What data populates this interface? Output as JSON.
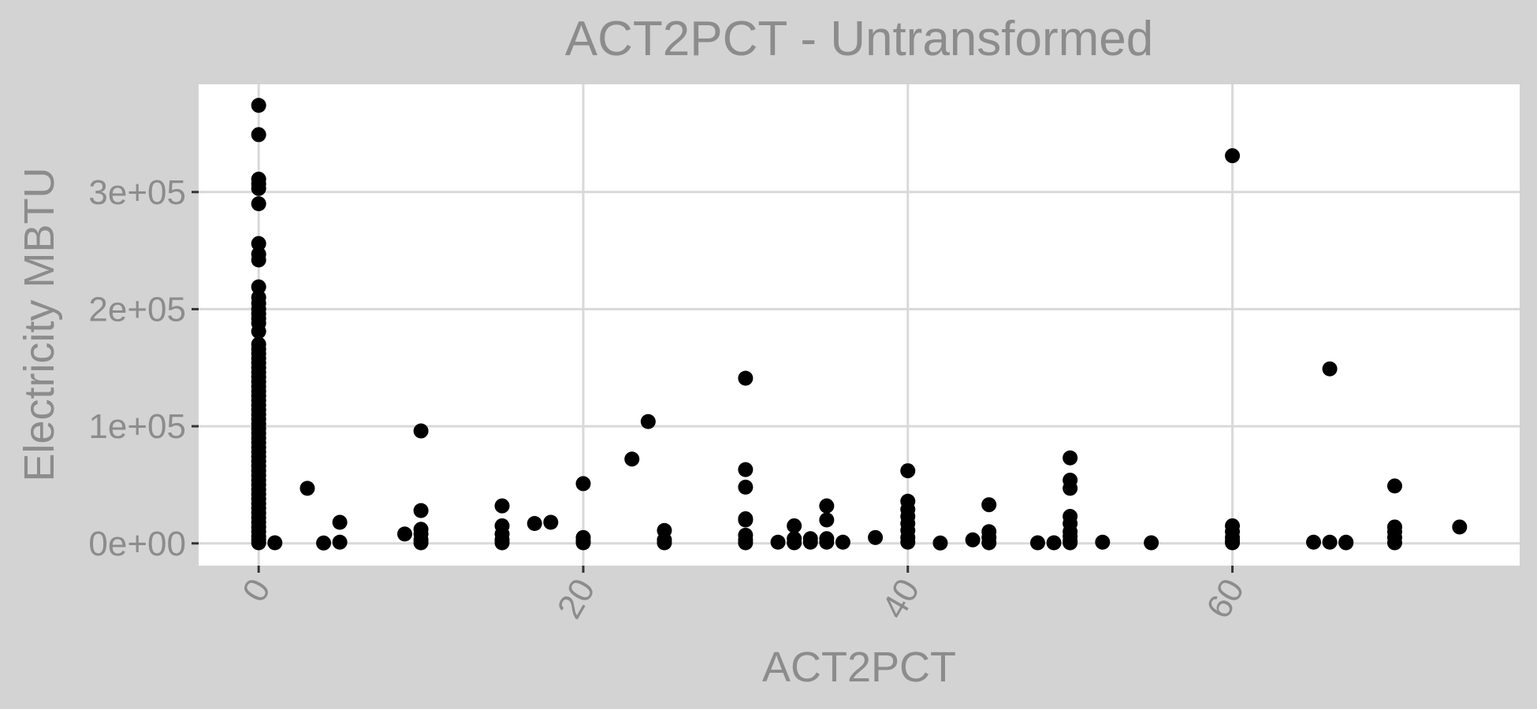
{
  "chart_data": {
    "type": "scatter",
    "title": "ACT2PCT - Untransformed",
    "xlabel": "ACT2PCT",
    "ylabel": "Electricity MBTU",
    "xlim": [
      -3.7,
      77.7
    ],
    "ylim": [
      -19000,
      392000
    ],
    "x_ticks": [
      {
        "value": 0,
        "label": "0"
      },
      {
        "value": 20,
        "label": "20"
      },
      {
        "value": 40,
        "label": "40"
      },
      {
        "value": 60,
        "label": "60"
      }
    ],
    "y_ticks": [
      {
        "value": 0,
        "label": "0e+00"
      },
      {
        "value": 100000,
        "label": "1e+05"
      },
      {
        "value": 200000,
        "label": "2e+05"
      },
      {
        "value": 300000,
        "label": "3e+05"
      }
    ],
    "grid": true,
    "colors": {
      "background": "#d3d3d3",
      "panel": "#ffffff",
      "grid": "#d9d9d9",
      "text": "#8c8c8c",
      "point": "#000000"
    },
    "series": [
      {
        "points": [
          [
            0,
            374000
          ],
          [
            0,
            349000
          ],
          [
            0,
            311000
          ],
          [
            0,
            307000
          ],
          [
            0,
            303000
          ],
          [
            0,
            290000
          ],
          [
            0,
            256000
          ],
          [
            0,
            247000
          ],
          [
            0,
            242000
          ],
          [
            0,
            219000
          ],
          [
            0,
            210000
          ],
          [
            0,
            205000
          ],
          [
            0,
            200000
          ],
          [
            0,
            196000
          ],
          [
            0,
            192000
          ],
          [
            0,
            188000
          ],
          [
            0,
            181000
          ],
          [
            0,
            170000
          ],
          [
            0,
            166000
          ],
          [
            0,
            162000
          ],
          [
            0,
            158000
          ],
          [
            0,
            154000
          ],
          [
            0,
            150000
          ],
          [
            0,
            146000
          ],
          [
            0,
            142000
          ],
          [
            0,
            138000
          ],
          [
            0,
            134000
          ],
          [
            0,
            130000
          ],
          [
            0,
            126000
          ],
          [
            0,
            122000
          ],
          [
            0,
            118000
          ],
          [
            0,
            114000
          ],
          [
            0,
            110000
          ],
          [
            0,
            106000
          ],
          [
            0,
            102000
          ],
          [
            0,
            98000
          ],
          [
            0,
            94000
          ],
          [
            0,
            90000
          ],
          [
            0,
            86000
          ],
          [
            0,
            82000
          ],
          [
            0,
            78000
          ],
          [
            0,
            74000
          ],
          [
            0,
            70000
          ],
          [
            0,
            66000
          ],
          [
            0,
            62000
          ],
          [
            0,
            58000
          ],
          [
            0,
            54000
          ],
          [
            0,
            50000
          ],
          [
            0,
            46000
          ],
          [
            0,
            42000
          ],
          [
            0,
            38000
          ],
          [
            0,
            34000
          ],
          [
            0,
            30000
          ],
          [
            0,
            26000
          ],
          [
            0,
            22000
          ],
          [
            0,
            18000
          ],
          [
            0,
            14000
          ],
          [
            0,
            10000
          ],
          [
            0,
            6000
          ],
          [
            0,
            3000
          ],
          [
            0,
            500
          ],
          [
            1,
            500
          ],
          [
            3,
            47000
          ],
          [
            4,
            300
          ],
          [
            5,
            18000
          ],
          [
            5,
            1000
          ],
          [
            9,
            8000
          ],
          [
            10,
            96000
          ],
          [
            10,
            28000
          ],
          [
            10,
            12000
          ],
          [
            10,
            8000
          ],
          [
            10,
            3000
          ],
          [
            10,
            500
          ],
          [
            15,
            32000
          ],
          [
            15,
            15000
          ],
          [
            15,
            8000
          ],
          [
            15,
            3000
          ],
          [
            15,
            500
          ],
          [
            17,
            17000
          ],
          [
            18,
            18000
          ],
          [
            20,
            51000
          ],
          [
            20,
            5000
          ],
          [
            20,
            2000
          ],
          [
            20,
            500
          ],
          [
            23,
            72000
          ],
          [
            24,
            104000
          ],
          [
            25,
            11000
          ],
          [
            25,
            3000
          ],
          [
            25,
            500
          ],
          [
            30,
            141000
          ],
          [
            30,
            63000
          ],
          [
            30,
            48000
          ],
          [
            30,
            21000
          ],
          [
            30,
            20000
          ],
          [
            30,
            7000
          ],
          [
            30,
            3000
          ],
          [
            30,
            500
          ],
          [
            32,
            1000
          ],
          [
            33,
            15000
          ],
          [
            33,
            4000
          ],
          [
            33,
            500
          ],
          [
            34,
            4000
          ],
          [
            34,
            1000
          ],
          [
            35,
            32000
          ],
          [
            35,
            20000
          ],
          [
            35,
            4000
          ],
          [
            35,
            1000
          ],
          [
            36,
            1000
          ],
          [
            38,
            5000
          ],
          [
            40,
            62000
          ],
          [
            40,
            36000
          ],
          [
            40,
            29000
          ],
          [
            40,
            23000
          ],
          [
            40,
            17000
          ],
          [
            40,
            11000
          ],
          [
            40,
            5000
          ],
          [
            40,
            1000
          ],
          [
            42,
            300
          ],
          [
            44,
            3000
          ],
          [
            45,
            33000
          ],
          [
            45,
            10000
          ],
          [
            45,
            5000
          ],
          [
            45,
            500
          ],
          [
            48,
            500
          ],
          [
            49,
            500
          ],
          [
            50,
            73000
          ],
          [
            50,
            54000
          ],
          [
            50,
            47000
          ],
          [
            50,
            23000
          ],
          [
            50,
            17000
          ],
          [
            50,
            10000
          ],
          [
            50,
            6000
          ],
          [
            50,
            2000
          ],
          [
            50,
            500
          ],
          [
            52,
            1000
          ],
          [
            55,
            500
          ],
          [
            60,
            331000
          ],
          [
            60,
            15000
          ],
          [
            60,
            10000
          ],
          [
            60,
            5000
          ],
          [
            60,
            2000
          ],
          [
            60,
            500
          ],
          [
            65,
            1000
          ],
          [
            66,
            149000
          ],
          [
            66,
            1000
          ],
          [
            67,
            1000
          ],
          [
            67,
            500
          ],
          [
            70,
            49000
          ],
          [
            70,
            14000
          ],
          [
            70,
            10000
          ],
          [
            70,
            5000
          ],
          [
            70,
            500
          ],
          [
            74,
            14000
          ]
        ]
      }
    ]
  }
}
